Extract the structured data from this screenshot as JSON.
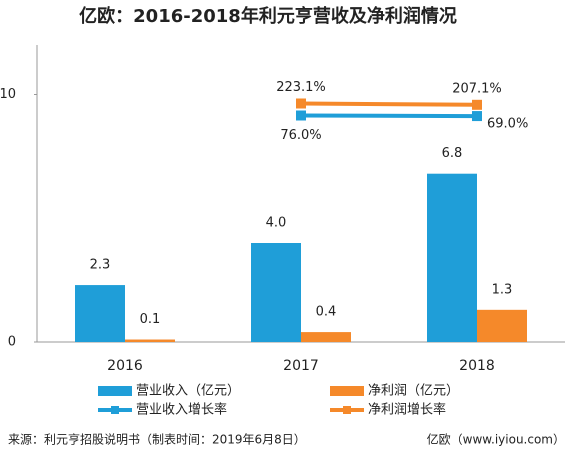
{
  "chart_data": {
    "type": "bar",
    "title": "亿欧：2016-2018年利元亨营收及净利润情况",
    "categories": [
      "2016",
      "2017",
      "2018"
    ],
    "ylim": [
      0,
      12
    ],
    "yticks": [
      0,
      10
    ],
    "y2lim": [
      -2700,
      940
    ],
    "series": [
      {
        "name": "营业收入（亿元）",
        "type": "bar",
        "color": "#1f9ed8",
        "values": [
          2.3,
          4.0,
          6.8
        ],
        "value_labels": [
          "2.3",
          "4.0",
          "6.8"
        ]
      },
      {
        "name": "净利润（亿元）",
        "type": "bar",
        "color": "#f5892a",
        "values": [
          0.1,
          0.4,
          1.3
        ],
        "value_labels": [
          "0.1",
          "0.4",
          "1.3"
        ]
      },
      {
        "name": "营业收入增长率",
        "type": "line",
        "axis": "y2",
        "color": "#1f9ed8",
        "values": [
          null,
          76.0,
          69.0
        ],
        "value_labels": [
          null,
          "76.0%",
          "69.0%"
        ]
      },
      {
        "name": "净利润增长率",
        "type": "line",
        "axis": "y2",
        "color": "#f5892a",
        "values": [
          null,
          223.1,
          207.1
        ],
        "value_labels": [
          null,
          "223.1%",
          "207.1%"
        ]
      }
    ],
    "source": "来源：利元亨招股说明书（制表时间：2019年6月8日）",
    "credit": "亿欧（www.iyiou.com）"
  }
}
